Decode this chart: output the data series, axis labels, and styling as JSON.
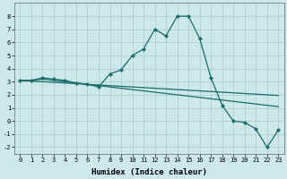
{
  "xlabel": "Humidex (Indice chaleur)",
  "background_color": "#cce8e8",
  "grid_color": "#aacccc",
  "line_color": "#1a6b6b",
  "x_values": [
    0,
    1,
    2,
    3,
    4,
    5,
    6,
    7,
    8,
    9,
    10,
    11,
    12,
    13,
    14,
    15,
    16,
    17,
    18,
    19,
    20,
    21,
    22,
    23
  ],
  "y_main": [
    3.1,
    3.1,
    3.3,
    3.2,
    3.1,
    2.9,
    2.8,
    2.6,
    3.6,
    3.9,
    5.0,
    5.5,
    7.0,
    6.5,
    8.0,
    8.0,
    6.3,
    3.3,
    1.2,
    0.0,
    -0.1,
    -0.6,
    -2.0,
    -0.7
  ],
  "y_line2": [
    3.1,
    3.1,
    3.2,
    3.1,
    3.0,
    2.9,
    2.8,
    2.7,
    2.6,
    2.5,
    2.4,
    2.3,
    2.2,
    2.1,
    2.0,
    1.9,
    1.8,
    1.7,
    1.6,
    1.5,
    1.4,
    1.3,
    1.2,
    1.1
  ],
  "y_line3": [
    3.1,
    3.05,
    3.0,
    2.95,
    2.9,
    2.85,
    2.8,
    2.75,
    2.7,
    2.65,
    2.6,
    2.55,
    2.5,
    2.45,
    2.4,
    2.35,
    2.3,
    2.25,
    2.2,
    2.15,
    2.1,
    2.05,
    2.0,
    1.95
  ],
  "ylim": [
    -2.5,
    9.0
  ],
  "xlim": [
    -0.5,
    23.5
  ],
  "yticks": [
    -2,
    -1,
    0,
    1,
    2,
    3,
    4,
    5,
    6,
    7,
    8
  ],
  "xticks": [
    0,
    1,
    2,
    3,
    4,
    5,
    6,
    7,
    8,
    9,
    10,
    11,
    12,
    13,
    14,
    15,
    16,
    17,
    18,
    19,
    20,
    21,
    22,
    23
  ],
  "xlabel_fontsize": 6.5,
  "tick_fontsize": 5.0,
  "linewidth": 0.9,
  "markersize": 2.2
}
